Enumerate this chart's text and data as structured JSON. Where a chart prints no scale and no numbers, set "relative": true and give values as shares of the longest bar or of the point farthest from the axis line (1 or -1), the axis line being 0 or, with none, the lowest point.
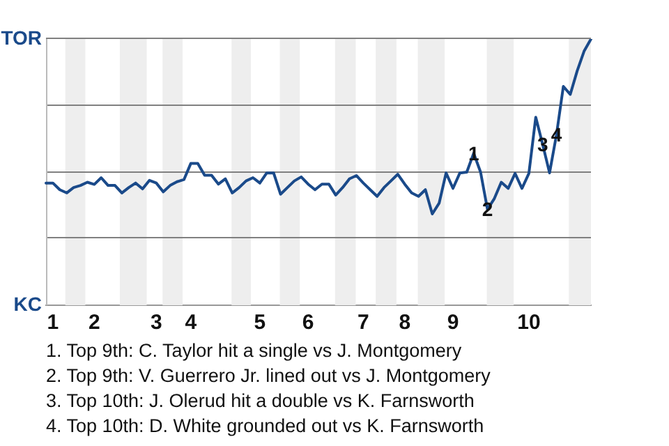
{
  "chart_data": {
    "type": "line",
    "relative": true,
    "categories": [
      null,
      "1",
      null,
      null,
      null,
      null,
      null,
      "2",
      null,
      null,
      null,
      null,
      null,
      null,
      null,
      null,
      "3",
      null,
      null,
      null,
      null,
      "4",
      null,
      null,
      null,
      null,
      null,
      null,
      null,
      null,
      null,
      "5",
      null,
      null,
      null,
      null,
      null,
      null,
      "6",
      null,
      null,
      null,
      null,
      null,
      null,
      null,
      "7",
      null,
      null,
      null,
      null,
      null,
      "8",
      null,
      null,
      null,
      null,
      null,
      null,
      "9",
      null,
      null,
      null,
      null,
      null,
      null,
      null,
      null,
      null,
      null,
      "10",
      null,
      null,
      null,
      null,
      null,
      null,
      null,
      null,
      null
    ],
    "series": [
      {
        "color": "#1a4a8a",
        "values": [
          0.459,
          0.459,
          0.434,
          0.422,
          0.442,
          0.45,
          0.462,
          0.454,
          0.479,
          0.45,
          0.45,
          0.422,
          0.442,
          0.459,
          0.437,
          0.469,
          0.459,
          0.426,
          0.45,
          0.464,
          0.472,
          0.533,
          0.533,
          0.488,
          0.488,
          0.455,
          0.475,
          0.422,
          0.442,
          0.467,
          0.479,
          0.459,
          0.497,
          0.497,
          0.417,
          0.442,
          0.467,
          0.482,
          0.455,
          0.434,
          0.455,
          0.455,
          0.414,
          0.442,
          0.475,
          0.487,
          0.459,
          0.434,
          0.409,
          0.442,
          0.467,
          0.492,
          0.455,
          0.422,
          0.409,
          0.434,
          0.343,
          0.384,
          0.497,
          0.439,
          0.497,
          0.5,
          0.571,
          0.5,
          0.36,
          0.401,
          0.462,
          0.439,
          0.495,
          0.439,
          0.495,
          0.706,
          0.604,
          0.497,
          0.64,
          0.822,
          0.792,
          0.88,
          0.954,
          1
        ]
      }
    ],
    "grid": false,
    "legend": false,
    "marker": "none",
    "line_style": "solid",
    "ref_lines": [
      {
        "axis": "y",
        "value": 0.25,
        "color": "#808080"
      },
      {
        "axis": "y",
        "value": 0.5,
        "color": "#808080"
      },
      {
        "axis": "y",
        "value": 0.75,
        "color": "#808080"
      },
      {
        "axis": "y",
        "value": 1,
        "label": "TOR",
        "color": "#808080"
      }
    ],
    "ylabel": "KC",
    "annotations": [
      {
        "text": "1",
        "y": 0.571
      },
      {
        "text": "2",
        "y": 0.36
      },
      {
        "text": "3",
        "y": 0.604
      },
      {
        "text": "4",
        "y": 0.64
      },
      "1. Top 9th: C. Taylor hit a single vs J. Montgomery",
      "2. Top 9th: V. Guerrero Jr. lined out vs J. Montgomery",
      "3. Top 10th: J. Olerud hit a double vs K. Farnsworth",
      "4. Top 10th: D. White grounded out vs K. Farnsworth"
    ]
  }
}
